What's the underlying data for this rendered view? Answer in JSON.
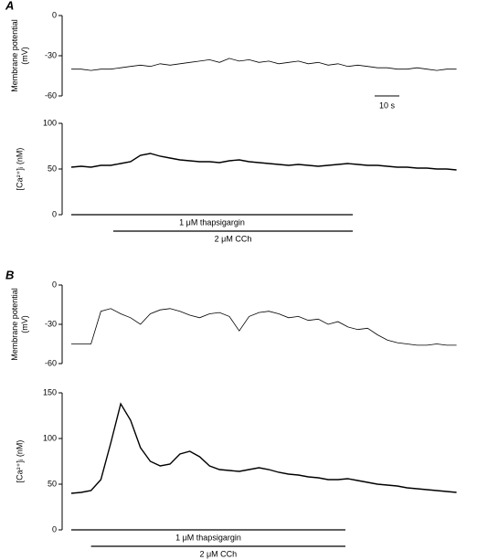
{
  "chart_data": [
    {
      "type": "line",
      "panel": "A",
      "ylabel": [
        "Membrane potential",
        "(mV)"
      ],
      "color": "#000000",
      "xlim": [
        0,
        158
      ],
      "ylim": [
        -60,
        0
      ],
      "yticks": [
        0,
        -30,
        -60
      ],
      "scale_bar": {
        "value": 10,
        "label": "10 s"
      },
      "x": [
        0,
        4,
        8,
        12,
        16,
        20,
        24,
        28,
        32,
        36,
        40,
        44,
        48,
        52,
        56,
        60,
        64,
        68,
        72,
        76,
        80,
        84,
        88,
        92,
        96,
        100,
        104,
        108,
        112,
        116,
        120,
        124,
        128,
        132,
        136,
        140,
        144,
        148,
        152,
        156
      ],
      "values": [
        -40,
        -40,
        -41,
        -40,
        -40,
        -39,
        -38,
        -37,
        -38,
        -36,
        -37,
        -36,
        -35,
        -34,
        -33,
        -35,
        -32,
        -34,
        -33,
        -35,
        -34,
        -36,
        -35,
        -34,
        -36,
        -35,
        -37,
        -36,
        -38,
        -37,
        -38,
        -39,
        -39,
        -40,
        -40,
        -39,
        -40,
        -41,
        -40,
        -40
      ]
    },
    {
      "type": "line",
      "ylabel": [
        "[Ca²⁺]ᵢ (nM)"
      ],
      "color": "#000000",
      "xlim": [
        0,
        158
      ],
      "ylim": [
        0,
        100
      ],
      "yticks": [
        100,
        50,
        0
      ],
      "stimuli": [
        {
          "label": "1 μM thapsigargin",
          "start": 0,
          "end": 114
        },
        {
          "label": "2 μM CCh",
          "start": 17,
          "end": 114
        }
      ],
      "x": [
        0,
        4,
        8,
        12,
        16,
        20,
        24,
        28,
        32,
        36,
        40,
        44,
        48,
        52,
        56,
        60,
        64,
        68,
        72,
        76,
        80,
        84,
        88,
        92,
        96,
        100,
        104,
        108,
        112,
        116,
        120,
        124,
        128,
        132,
        136,
        140,
        144,
        148,
        152,
        156
      ],
      "values": [
        52,
        53,
        52,
        54,
        54,
        56,
        58,
        65,
        67,
        64,
        62,
        60,
        59,
        58,
        58,
        57,
        59,
        60,
        58,
        57,
        56,
        55,
        54,
        55,
        54,
        53,
        54,
        55,
        56,
        55,
        54,
        54,
        53,
        52,
        52,
        51,
        51,
        50,
        50,
        49
      ]
    },
    {
      "type": "line",
      "panel": "B",
      "ylabel": [
        "Membrane potential",
        "(mV)"
      ],
      "color": "#000000",
      "xlim": [
        0,
        158
      ],
      "ylim": [
        -60,
        0
      ],
      "yticks": [
        0,
        -30,
        -60
      ],
      "x": [
        0,
        4,
        8,
        12,
        16,
        20,
        24,
        28,
        32,
        36,
        40,
        44,
        48,
        52,
        56,
        60,
        64,
        68,
        72,
        76,
        80,
        84,
        88,
        92,
        96,
        100,
        104,
        108,
        112,
        116,
        120,
        124,
        128,
        132,
        136,
        140,
        144,
        148,
        152,
        156
      ],
      "values": [
        -45,
        -45,
        -45,
        -20,
        -18,
        -22,
        -25,
        -30,
        -22,
        -19,
        -18,
        -20,
        -23,
        -25,
        -22,
        -21,
        -24,
        -35,
        -24,
        -21,
        -20,
        -22,
        -25,
        -24,
        -27,
        -26,
        -30,
        -28,
        -32,
        -34,
        -33,
        -38,
        -42,
        -44,
        -45,
        -46,
        -46,
        -45,
        -46,
        -46
      ]
    },
    {
      "type": "line",
      "ylabel": [
        "[Ca²⁺]ᵢ (nM)"
      ],
      "color": "#000000",
      "xlim": [
        0,
        158
      ],
      "ylim": [
        0,
        150
      ],
      "yticks": [
        150,
        100,
        50,
        0
      ],
      "stimuli": [
        {
          "label": "1 μM thapsigargin",
          "start": 0,
          "end": 111
        },
        {
          "label": "2 μM CCh",
          "start": 8,
          "end": 111
        }
      ],
      "x": [
        0,
        4,
        8,
        12,
        16,
        20,
        24,
        28,
        32,
        36,
        40,
        44,
        48,
        52,
        56,
        60,
        64,
        68,
        72,
        76,
        80,
        84,
        88,
        92,
        96,
        100,
        104,
        108,
        112,
        116,
        120,
        124,
        128,
        132,
        136,
        140,
        144,
        148,
        152,
        156
      ],
      "values": [
        40,
        41,
        43,
        55,
        95,
        138,
        120,
        90,
        75,
        70,
        72,
        83,
        86,
        80,
        70,
        66,
        65,
        64,
        66,
        68,
        66,
        63,
        61,
        60,
        58,
        57,
        55,
        55,
        56,
        54,
        52,
        50,
        49,
        48,
        46,
        45,
        44,
        43,
        42,
        41
      ]
    }
  ]
}
